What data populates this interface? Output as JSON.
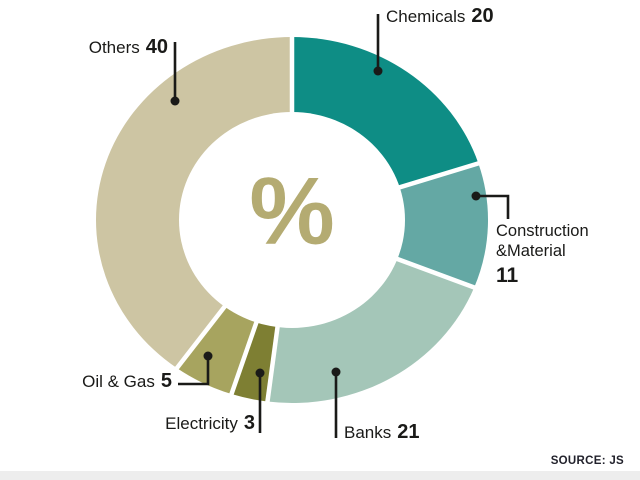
{
  "source": {
    "label": "SOURCE: JS"
  },
  "chart_data": {
    "type": "pie",
    "subtype": "donut",
    "title": "",
    "unit": "%",
    "start_angle_deg": 0,
    "direction": "clockwise",
    "center_label": "%",
    "center_label_color": "#b4ab72",
    "separator_color": "#ffffff",
    "leader_line_color": "#1a1a18",
    "segments": [
      {
        "label": "Chemicals",
        "value": 20,
        "color": "#0e8d85"
      },
      {
        "label": "Construction &Material",
        "value": 11,
        "color": "#64a8a4"
      },
      {
        "label": "Banks",
        "value": 21,
        "color": "#a4c6b8"
      },
      {
        "label": "Electricity",
        "value": 3,
        "color": "#7e7f33"
      },
      {
        "label": "Oil & Gas",
        "value": 5,
        "color": "#a7a45f"
      },
      {
        "label": "Others",
        "value": 40,
        "color": "#cdc5a3"
      }
    ]
  }
}
